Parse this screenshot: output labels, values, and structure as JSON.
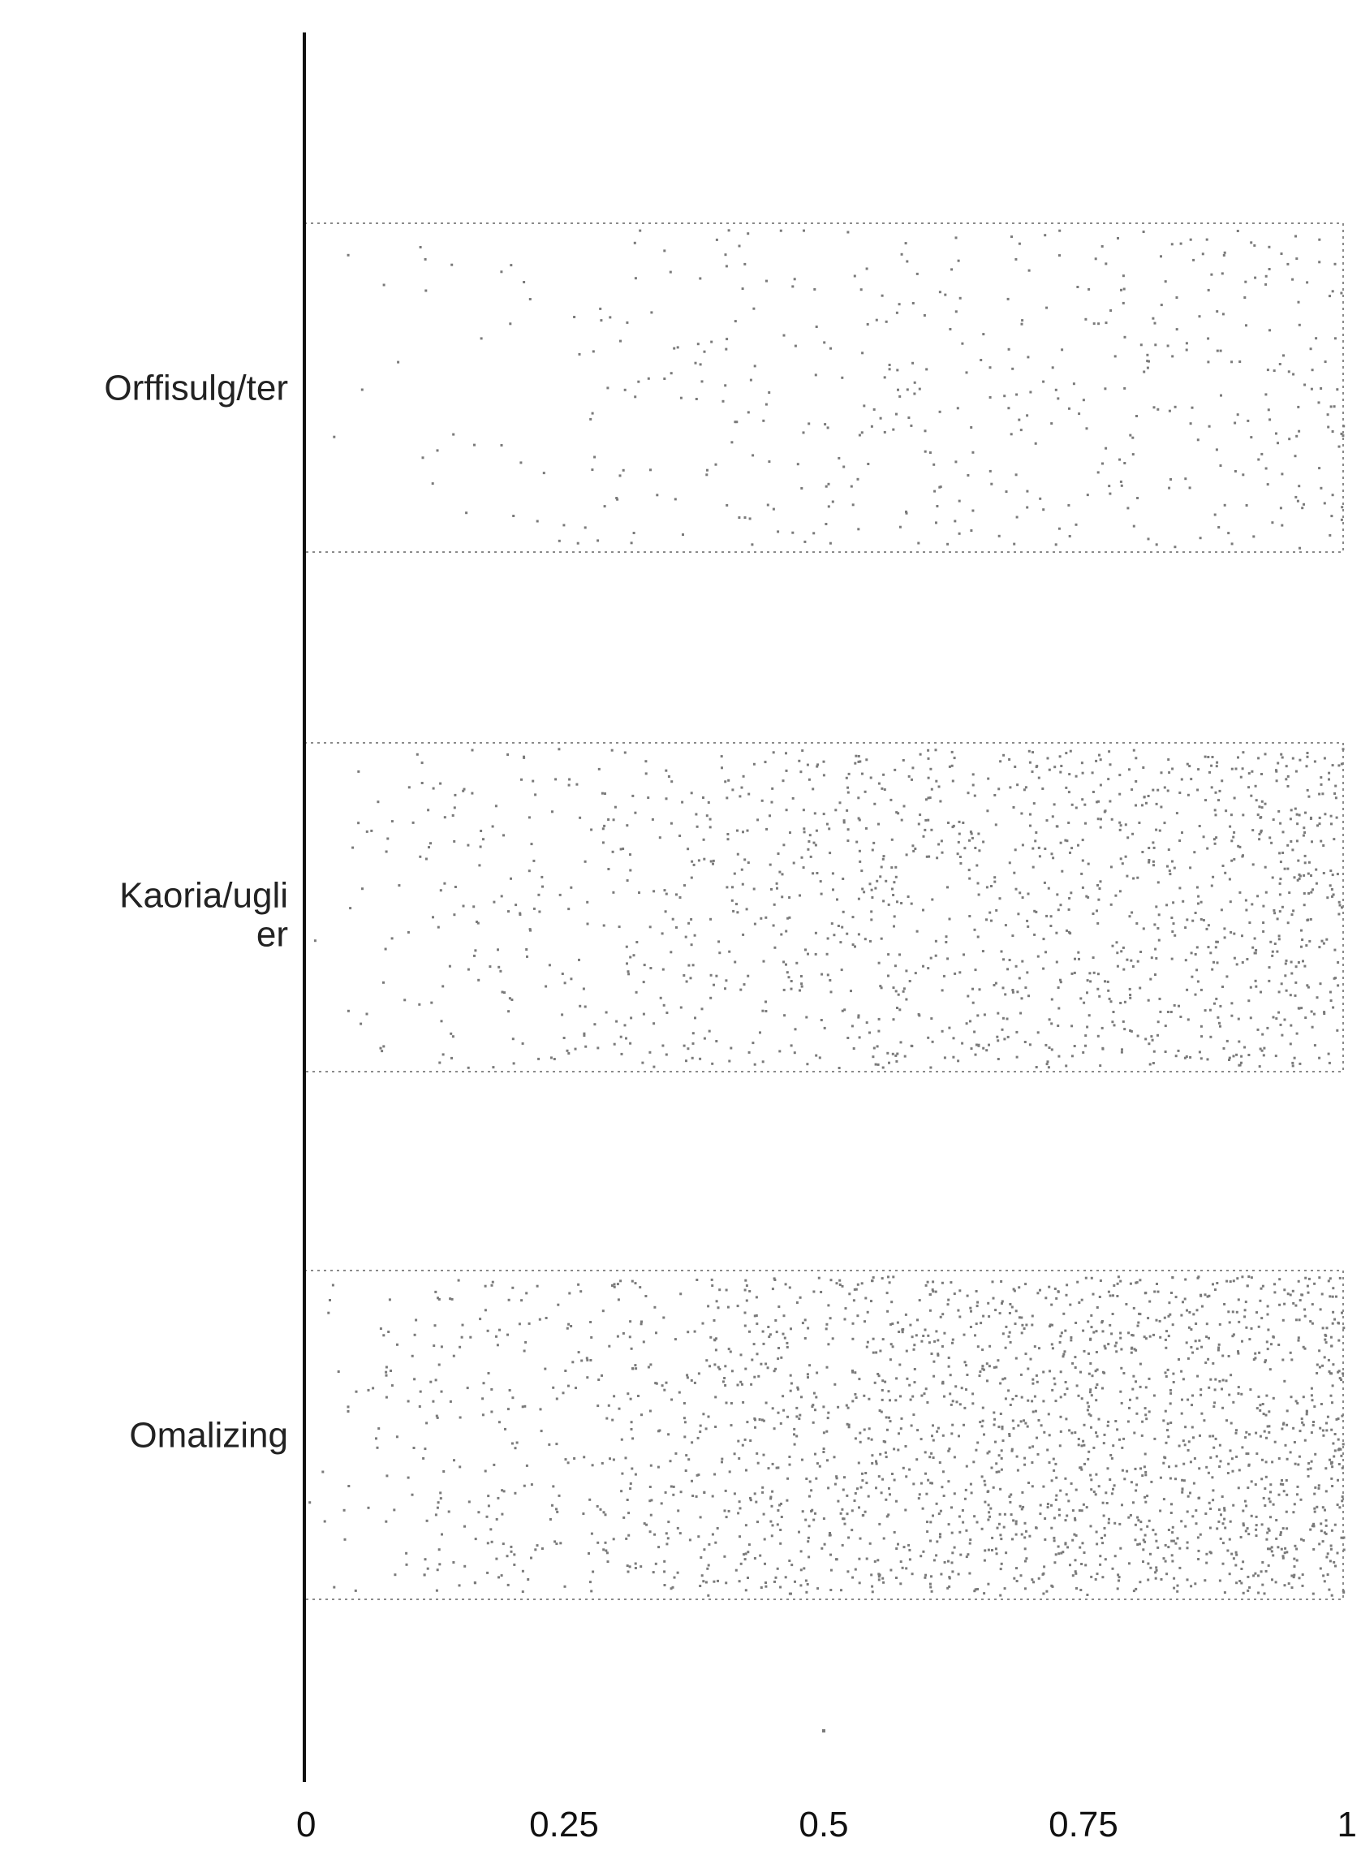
{
  "chart_data": {
    "type": "scatter",
    "title": "",
    "xlabel": "",
    "ylabel": "",
    "xlim": [
      0,
      1
    ],
    "x_ticks": [
      0,
      0.25,
      0.5,
      0.75,
      1
    ],
    "x_tick_labels": [
      "0",
      "0.25",
      "0.5",
      "0.75",
      "1"
    ],
    "grid": false,
    "legend": "none",
    "colors": {
      "points": "#7a7a7a",
      "axis": "#111111",
      "text": "#222222"
    },
    "categories": [
      {
        "label": "Orffisulg/ter",
        "relative_density": 0.18,
        "density_trend": "increasing toward 1"
      },
      {
        "label": "Kaoria/ugli er",
        "relative_density": 0.55,
        "density_trend": "increasing toward 1"
      },
      {
        "label": "Omalizing",
        "relative_density": 0.85,
        "density_trend": "increasing toward 1"
      }
    ],
    "outliers": [
      {
        "x": 0.5,
        "category_index": 3
      }
    ]
  }
}
